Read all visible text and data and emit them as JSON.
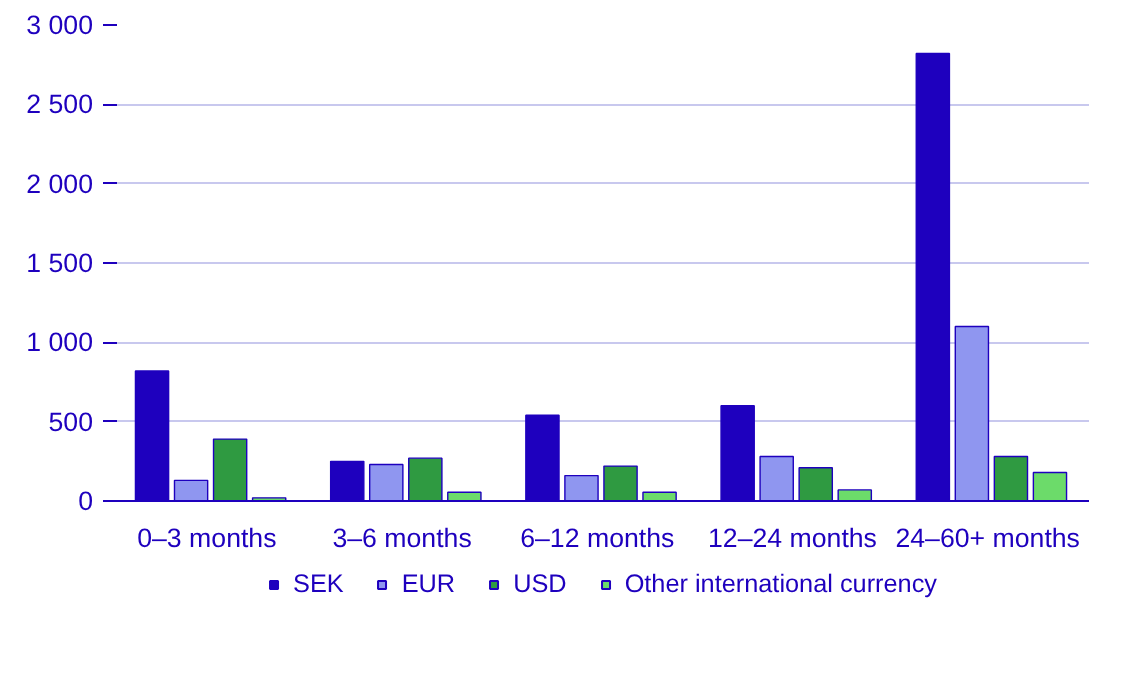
{
  "chart_data": {
    "type": "bar",
    "categories": [
      "0–3  months",
      "3–6  months",
      "6–12  months",
      "12–24  months",
      "24–60+  months"
    ],
    "series": [
      {
        "name": "SEK",
        "color": "#1e00be",
        "values": [
          820,
          250,
          540,
          600,
          2820
        ]
      },
      {
        "name": "EUR",
        "color": "#8f96f0",
        "values": [
          130,
          230,
          160,
          280,
          1100
        ]
      },
      {
        "name": "USD",
        "color": "#2f9a41",
        "values": [
          390,
          270,
          220,
          210,
          280
        ]
      },
      {
        "name": "Other international currency",
        "color": "#6cdb6a",
        "values": [
          20,
          55,
          55,
          70,
          180
        ]
      }
    ],
    "ylim": [
      0,
      3000
    ],
    "yticks": [
      {
        "value": 0,
        "label": "0"
      },
      {
        "value": 500,
        "label": "500"
      },
      {
        "value": 1000,
        "label": "1 000"
      },
      {
        "value": 1500,
        "label": "1 500"
      },
      {
        "value": 2000,
        "label": "2 000"
      },
      {
        "value": 2500,
        "label": "2 500"
      },
      {
        "value": 3000,
        "label": "3 000"
      }
    ],
    "grid": "y",
    "legend": "bottom"
  }
}
